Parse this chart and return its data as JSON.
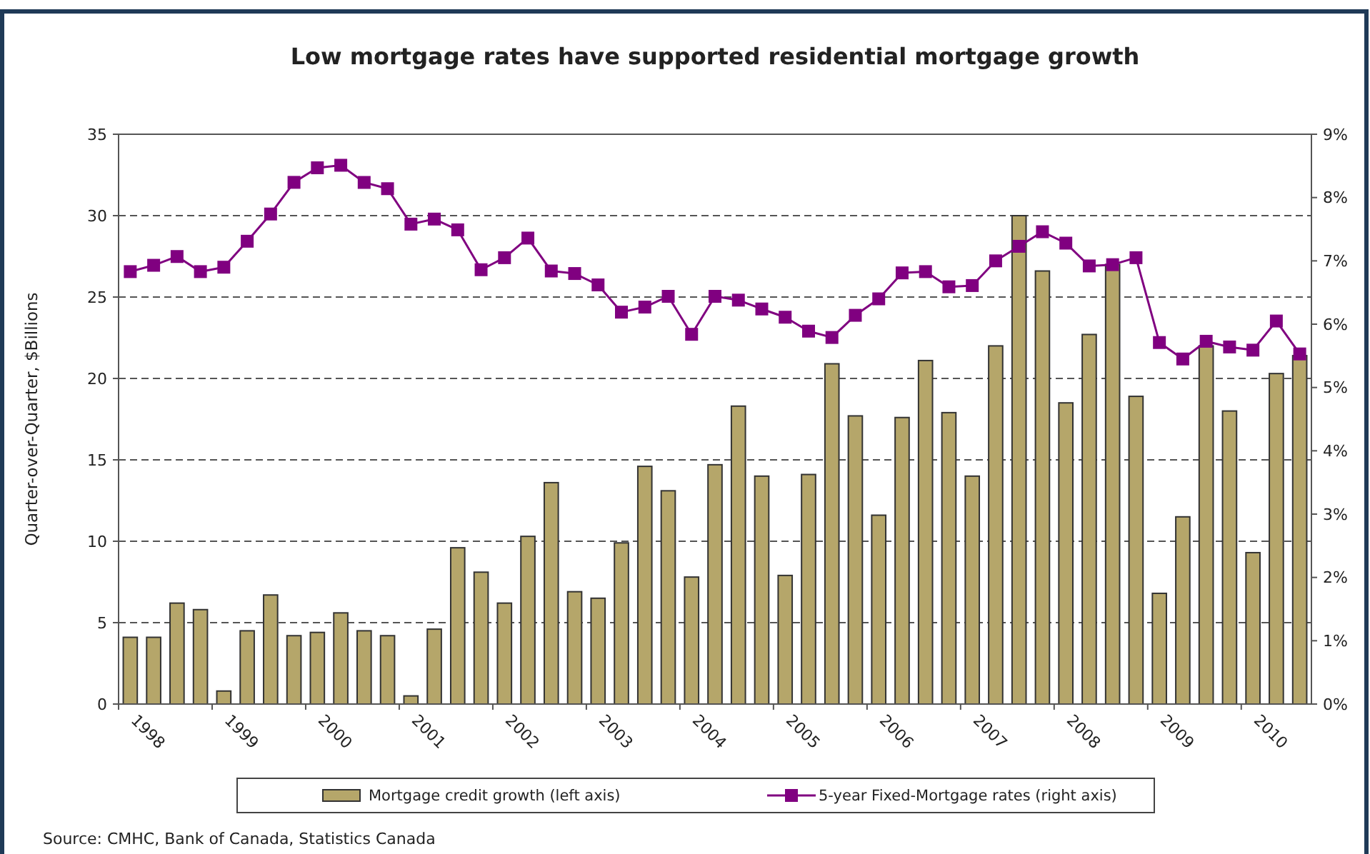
{
  "chart_data": {
    "type": "bar",
    "title": "Low mortgage rates have supported residential mortgage growth",
    "ylabel": "Quarter-over-Quarter, $Billions",
    "categories": [
      "1998",
      null,
      null,
      null,
      "1999",
      null,
      null,
      null,
      "2000",
      null,
      null,
      null,
      "2001",
      null,
      null,
      null,
      "2002",
      null,
      null,
      null,
      "2003",
      null,
      null,
      null,
      "2004",
      null,
      null,
      null,
      "2005",
      null,
      null,
      null,
      "2006",
      null,
      null,
      null,
      "2007",
      null,
      null,
      null,
      "2008",
      null,
      null,
      null,
      "2009",
      null,
      null,
      null,
      "2010",
      null,
      null
    ],
    "series": [
      {
        "name": "Mortgage credit growth (left axis)",
        "color": "#b5a66a",
        "values": [
          4.1,
          4.1,
          6.2,
          5.8,
          0.8,
          4.5,
          6.7,
          4.2,
          4.4,
          5.6,
          4.5,
          4.2,
          0.5,
          4.6,
          9.6,
          8.1,
          6.2,
          10.3,
          13.6,
          6.9,
          6.5,
          9.9,
          14.6,
          13.1,
          7.8,
          14.7,
          18.3,
          14.0,
          7.9,
          14.1,
          20.9,
          17.7,
          11.6,
          17.6,
          21.1,
          17.9,
          14.0,
          22.0,
          30.0,
          26.6,
          18.5,
          22.7,
          27.0,
          18.9,
          6.8,
          11.5,
          22.0,
          18.0,
          9.3,
          20.3,
          21.4
        ]
      },
      {
        "name": "5-year Fixed-Mortgage rates (right axis)",
        "type": "line",
        "axis": "y2",
        "color": "#800080",
        "marker": "square",
        "line_style": "solid",
        "values": [
          6.83,
          6.93,
          7.07,
          6.83,
          6.9,
          7.31,
          7.74,
          8.24,
          8.47,
          8.51,
          8.24,
          8.14,
          7.58,
          7.66,
          7.49,
          6.86,
          7.05,
          7.36,
          6.84,
          6.8,
          6.62,
          6.19,
          6.27,
          6.44,
          5.84,
          6.44,
          6.38,
          6.24,
          6.11,
          5.89,
          5.79,
          6.14,
          6.4,
          6.81,
          6.83,
          6.59,
          6.61,
          7.0,
          7.23,
          7.46,
          7.28,
          6.92,
          6.94,
          7.05,
          5.71,
          5.45,
          5.73,
          5.64,
          5.59,
          6.05,
          5.53
        ]
      }
    ],
    "ylim": [
      0,
      35
    ],
    "yticks": [
      0,
      5,
      10,
      15,
      20,
      25,
      30,
      35
    ],
    "y2lim": [
      0,
      9
    ],
    "y2ticks": [
      {
        "value": 0,
        "label": "0%"
      },
      {
        "value": 1,
        "label": "1%"
      },
      {
        "value": 2,
        "label": "2%"
      },
      {
        "value": 3,
        "label": "3%"
      },
      {
        "value": 4,
        "label": "4%"
      },
      {
        "value": 5,
        "label": "5%"
      },
      {
        "value": 6,
        "label": "6%"
      },
      {
        "value": 7,
        "label": "7%"
      },
      {
        "value": 8,
        "label": "8%"
      },
      {
        "value": 9,
        "label": "9%"
      }
    ],
    "grid": "y",
    "legend": "bottom",
    "annotations": [
      "Source: CMHC, Bank of Canada, Statistics Canada"
    ]
  }
}
